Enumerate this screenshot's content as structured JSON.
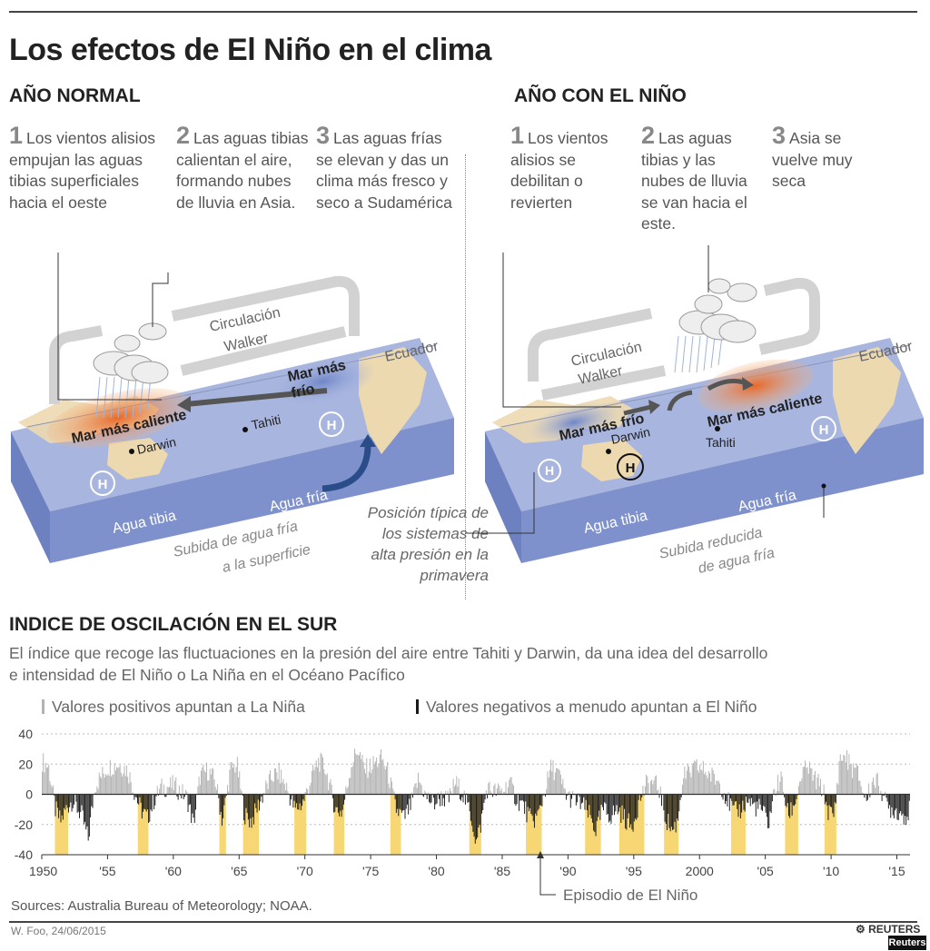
{
  "title": "Los efectos de El Niño en el clima",
  "normal": {
    "heading": "AÑO NORMAL",
    "steps": [
      {
        "num": "1",
        "text": "Los vientos alisios empujan las aguas tibias superficiales hacia el oeste"
      },
      {
        "num": "2",
        "text": "Las aguas tibias calientan el aire, formando nubes de lluvia en Asia."
      },
      {
        "num": "3",
        "text": "Las aguas frías se elevan y das un clima más fresco y seco a Sudamérica"
      }
    ],
    "labels": {
      "circulation": "Circulación Walker",
      "warm_sea": "Mar más caliente",
      "cold_sea": "Mar más frío",
      "equator": "Ecuador",
      "darwin": "Darwin",
      "tahiti": "Tahiti",
      "warm_water": "Agua tibia",
      "cold_water": "Agua fría",
      "upwelling": "Subida de agua fría a la superficie"
    }
  },
  "nino": {
    "heading": "AÑO CON EL NIÑO",
    "steps": [
      {
        "num": "1",
        "text": "Los vientos alisios se debilitan o revierten"
      },
      {
        "num": "2",
        "text": "Las aguas tibias y las nubes de lluvia se van hacia el este."
      },
      {
        "num": "3",
        "text": "Asia se vuelve muy seca"
      }
    ],
    "labels": {
      "circulation": "Circulación Walker",
      "warm_sea": "Mar más caliente",
      "cold_sea": "Mar más frío",
      "equator": "Ecuador",
      "darwin": "Darwin",
      "tahiti": "Tahiti",
      "warm_water": "Agua tibia",
      "cold_water": "Agua fría",
      "upwelling": "Subida reducida de agua fría"
    }
  },
  "high_pressure_note": "Posición típica de los sistemas de alta presión en la primavera",
  "high_symbol": "H",
  "soi": {
    "title": "INDICE DE OSCILACIÓN EN EL SUR",
    "description": "El índice que recoge las fluctuaciones en la presión del aire entre Tahiti y Darwin, da una idea del desarrollo e intensidad de El Niño o La Niña en el Océano Pacífico",
    "legend_positive": "Valores positivos apuntan a La Niña",
    "legend_negative": "Valores negativos a menudo apuntan a El Niño",
    "episode_label": "Episodio de El Niño"
  },
  "chart_data": {
    "type": "bar",
    "x_tick_labels": [
      "1950",
      "'55",
      "'60",
      "'65",
      "'70",
      "'75",
      "'80",
      "'85",
      "'90",
      "'95",
      "2000",
      "'05",
      "'10",
      "'15"
    ],
    "x_ticks": [
      1950,
      1955,
      1960,
      1965,
      1970,
      1975,
      1980,
      1985,
      1990,
      1995,
      2000,
      2005,
      2010,
      2015
    ],
    "y_ticks": [
      40,
      20,
      0,
      -20,
      -40
    ],
    "xlim": [
      1950,
      2016
    ],
    "ylim": [
      -40,
      40
    ],
    "grid": "horizontal dotted",
    "colors": {
      "positive": "#b3b3b3",
      "negative": "#1a1a1a",
      "episode": "#f7d774"
    },
    "el_nino_episodes": [
      [
        1951.0,
        1952.0
      ],
      [
        1957.3,
        1958.1
      ],
      [
        1963.5,
        1964.0
      ],
      [
        1965.3,
        1966.5
      ],
      [
        1969.2,
        1970.1
      ],
      [
        1972.2,
        1973.0
      ],
      [
        1976.5,
        1977.3
      ],
      [
        1982.5,
        1983.4
      ],
      [
        1986.8,
        1988.0
      ],
      [
        1991.3,
        1992.5
      ],
      [
        1993.9,
        1995.8
      ],
      [
        1997.3,
        1998.4
      ],
      [
        2002.4,
        2003.5
      ],
      [
        2006.5,
        2007.5
      ],
      [
        2009.5,
        2010.4
      ]
    ],
    "monthly_index_anchors": [
      [
        1950.0,
        22
      ],
      [
        1950.5,
        18
      ],
      [
        1951.0,
        -10
      ],
      [
        1951.4,
        -18
      ],
      [
        1951.9,
        -8
      ],
      [
        1952.3,
        -4
      ],
      [
        1953.0,
        -14
      ],
      [
        1953.5,
        -30
      ],
      [
        1954.0,
        6
      ],
      [
        1955.0,
        18
      ],
      [
        1955.8,
        20
      ],
      [
        1956.5,
        16
      ],
      [
        1957.0,
        2
      ],
      [
        1957.5,
        -10
      ],
      [
        1958.0,
        -16
      ],
      [
        1958.5,
        -4
      ],
      [
        1959.0,
        4
      ],
      [
        1960.0,
        6
      ],
      [
        1961.0,
        -2
      ],
      [
        1961.5,
        -20
      ],
      [
        1962.0,
        12
      ],
      [
        1962.6,
        16
      ],
      [
        1963.2,
        8
      ],
      [
        1963.7,
        -18
      ],
      [
        1964.3,
        16
      ],
      [
        1964.8,
        20
      ],
      [
        1965.4,
        -14
      ],
      [
        1965.9,
        -18
      ],
      [
        1966.4,
        -8
      ],
      [
        1967.0,
        4
      ],
      [
        1967.5,
        12
      ],
      [
        1968.0,
        14
      ],
      [
        1968.6,
        4
      ],
      [
        1969.2,
        -10
      ],
      [
        1969.8,
        -6
      ],
      [
        1970.5,
        12
      ],
      [
        1971.0,
        22
      ],
      [
        1971.5,
        18
      ],
      [
        1972.3,
        -10
      ],
      [
        1972.8,
        -12
      ],
      [
        1973.5,
        20
      ],
      [
        1974.0,
        30
      ],
      [
        1974.5,
        16
      ],
      [
        1975.2,
        20
      ],
      [
        1975.8,
        24
      ],
      [
        1976.3,
        14
      ],
      [
        1976.9,
        -10
      ],
      [
        1977.5,
        -16
      ],
      [
        1978.0,
        -8
      ],
      [
        1978.6,
        10
      ],
      [
        1979.2,
        -2
      ],
      [
        1979.8,
        -6
      ],
      [
        1980.3,
        -2
      ],
      [
        1980.9,
        -4
      ],
      [
        1981.4,
        8
      ],
      [
        1982.0,
        0
      ],
      [
        1982.6,
        -14
      ],
      [
        1983.0,
        -32
      ],
      [
        1983.3,
        -22
      ],
      [
        1983.8,
        4
      ],
      [
        1984.4,
        2
      ],
      [
        1985.0,
        2
      ],
      [
        1985.5,
        8
      ],
      [
        1986.0,
        -2
      ],
      [
        1986.6,
        -8
      ],
      [
        1987.2,
        -18
      ],
      [
        1987.7,
        -14
      ],
      [
        1988.2,
        2
      ],
      [
        1988.7,
        18
      ],
      [
        1989.2,
        14
      ],
      [
        1989.8,
        0
      ],
      [
        1990.4,
        -4
      ],
      [
        1991.0,
        -6
      ],
      [
        1991.6,
        -14
      ],
      [
        1992.1,
        -24
      ],
      [
        1992.6,
        -10
      ],
      [
        1993.2,
        -14
      ],
      [
        1993.8,
        -10
      ],
      [
        1994.3,
        -16
      ],
      [
        1994.8,
        -22
      ],
      [
        1995.4,
        -4
      ],
      [
        1995.9,
        6
      ],
      [
        1996.4,
        8
      ],
      [
        1996.9,
        4
      ],
      [
        1997.4,
        -16
      ],
      [
        1997.9,
        -24
      ],
      [
        1998.3,
        -18
      ],
      [
        1998.7,
        12
      ],
      [
        1999.2,
        14
      ],
      [
        1999.8,
        18
      ],
      [
        2000.3,
        16
      ],
      [
        2000.9,
        12
      ],
      [
        2001.5,
        8
      ],
      [
        2002.0,
        -2
      ],
      [
        2002.6,
        -12
      ],
      [
        2003.1,
        -10
      ],
      [
        2003.6,
        -4
      ],
      [
        2004.2,
        -8
      ],
      [
        2004.7,
        -10
      ],
      [
        2005.2,
        -20
      ],
      [
        2005.7,
        4
      ],
      [
        2006.2,
        10
      ],
      [
        2006.7,
        -14
      ],
      [
        2007.2,
        -6
      ],
      [
        2007.7,
        12
      ],
      [
        2008.2,
        18
      ],
      [
        2008.7,
        10
      ],
      [
        2009.3,
        4
      ],
      [
        2009.8,
        -12
      ],
      [
        2010.2,
        -14
      ],
      [
        2010.6,
        22
      ],
      [
        2011.0,
        26
      ],
      [
        2011.5,
        18
      ],
      [
        2012.0,
        14
      ],
      [
        2012.6,
        -4
      ],
      [
        2013.2,
        10
      ],
      [
        2013.7,
        6
      ],
      [
        2014.2,
        -8
      ],
      [
        2014.7,
        -10
      ],
      [
        2015.2,
        -12
      ],
      [
        2015.7,
        -14
      ],
      [
        2016.0,
        -10
      ]
    ]
  },
  "footer": {
    "sources": "Sources: Australia Bureau of Meteorology; NOAA.",
    "byline": "W. Foo, 24/06/2015",
    "brand": "REUTERS",
    "brand_box": "Reuters"
  }
}
